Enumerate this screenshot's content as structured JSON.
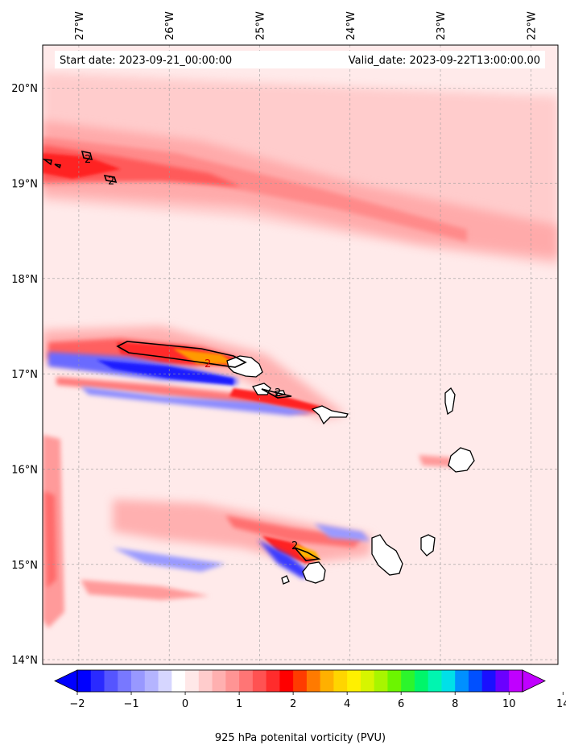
{
  "chart_data": {
    "type": "heatmap",
    "banner": {
      "start_text": "Start date: 2023-09-21_00:00:00",
      "valid_text": "Valid_date: 2023-09-22T13:00:00.00"
    },
    "lon_range": [
      -27.4,
      -21.7
    ],
    "lat_range": [
      13.95,
      20.45
    ],
    "lon_ticks": [
      {
        "value": -27,
        "label": "27°W"
      },
      {
        "value": -26,
        "label": "26°W"
      },
      {
        "value": -25,
        "label": "25°W"
      },
      {
        "value": -24,
        "label": "24°W"
      },
      {
        "value": -23,
        "label": "23°W"
      },
      {
        "value": -22,
        "label": "22°W"
      }
    ],
    "lat_ticks": [
      {
        "value": 20,
        "label": "20°N"
      },
      {
        "value": 19,
        "label": "19°N"
      },
      {
        "value": 18,
        "label": "18°N"
      },
      {
        "value": 17,
        "label": "17°N"
      },
      {
        "value": 16,
        "label": "16°N"
      },
      {
        "value": 15,
        "label": "15°N"
      },
      {
        "value": 14,
        "label": "14°N"
      }
    ],
    "grid": true,
    "colorbar": {
      "label": "925 hPa potenital vorticity (PVU)",
      "colors": [
        "#0000ff",
        "#2a2aff",
        "#5555ff",
        "#7878ff",
        "#9898ff",
        "#b4b4ff",
        "#d6d6ff",
        "#ffffff",
        "#ffe8e8",
        "#ffcccc",
        "#ffb0b0",
        "#ff9494",
        "#ff7575",
        "#ff5252",
        "#ff2c2c",
        "#ff0000",
        "#ff3b00",
        "#ff7a00",
        "#ffb000",
        "#ffd500",
        "#fff000",
        "#d6f500",
        "#a8f500",
        "#6cf500",
        "#2cf52c",
        "#00f56a",
        "#00f5b0",
        "#00e0e8",
        "#0090ff",
        "#0050ff",
        "#1a10ff",
        "#6a00ff",
        "#c000ff"
      ],
      "tick_labels": [
        "−2",
        "−1",
        "0",
        "1",
        "2",
        "4",
        "6",
        "8",
        "10",
        "14"
      ],
      "tick_bins": [
        0,
        4,
        8,
        12,
        16,
        20,
        24,
        28,
        32,
        36
      ],
      "extend": "both"
    },
    "contour_label": "2",
    "islands": [
      {
        "name": "Santo Antão",
        "lon": -25.15,
        "lat": 17.05
      },
      {
        "name": "São Vicente",
        "lon": -24.95,
        "lat": 16.82
      },
      {
        "name": "Santa Luzia",
        "lon": -24.75,
        "lat": 16.77
      },
      {
        "name": "São Nicolau",
        "lon": -24.25,
        "lat": 16.6
      },
      {
        "name": "Sal",
        "lon": -22.93,
        "lat": 16.72
      },
      {
        "name": "Boa Vista",
        "lon": -22.83,
        "lat": 16.08
      },
      {
        "name": "Maio",
        "lon": -23.13,
        "lat": 15.2
      },
      {
        "name": "Santiago",
        "lon": -23.63,
        "lat": 15.08
      },
      {
        "name": "Fogo",
        "lon": -24.4,
        "lat": 14.93
      },
      {
        "name": "Brava",
        "lon": -24.71,
        "lat": 14.85
      }
    ]
  }
}
